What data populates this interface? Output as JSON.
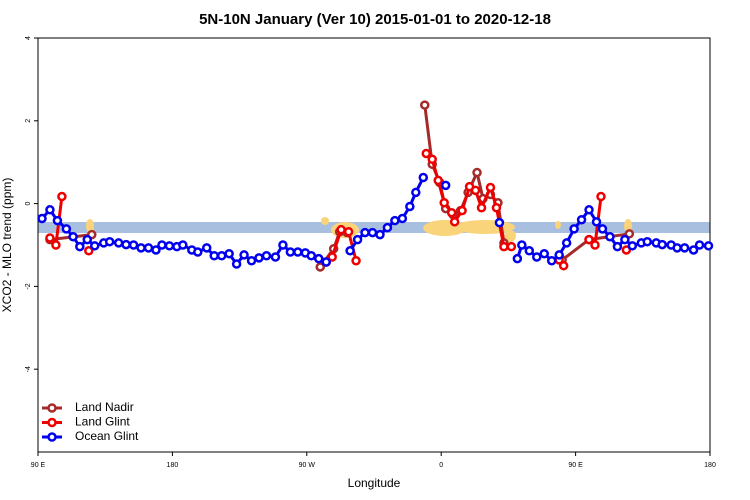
{
  "chart_data": {
    "type": "line",
    "title": "5N-10N January (Ver 10)   2015-01-01 to 2020-12-18",
    "x_label": "Longitude",
    "y_label": "XCO2 - MLO trend (ppm)",
    "xlim": [
      90,
      540
    ],
    "ylim": [
      -6,
      4
    ],
    "xticks": [
      {
        "value": 90,
        "label": "90 E"
      },
      180,
      {
        "value": 270,
        "label": "90 W"
      },
      {
        "value": 360,
        "label": "0"
      },
      {
        "value": 450,
        "label": "90 E"
      },
      {
        "value": 540,
        "label": "180"
      }
    ],
    "yticks": [
      -4,
      -2,
      0,
      2,
      4
    ],
    "legend": "bottom-left",
    "series": [
      {
        "name": "Land Nadir",
        "color": "#a52a2a",
        "x": [
          98,
          126,
          null,
          279,
          288,
          292,
          297,
          null,
          349,
          354,
          359,
          363,
          368,
          373,
          378,
          384,
          388,
          393,
          398,
          402,
          null,
          441,
          459,
          486
        ],
        "values": [
          -0.87,
          -0.75,
          null,
          -1.53,
          -1.09,
          -0.68,
          -0.7,
          null,
          2.38,
          0.95,
          0.51,
          -0.12,
          -0.27,
          -0.17,
          0.27,
          0.75,
          0.12,
          0.22,
          0.02,
          -0.95,
          null,
          -1.36,
          -0.87,
          -0.73
        ]
      },
      {
        "name": "Land Glint",
        "color": "#ee0000",
        "x": [
          98,
          102,
          106,
          null,
          124,
          null,
          283,
          287,
          293,
          298,
          303,
          null,
          350,
          354,
          358,
          362,
          367,
          369,
          374,
          379,
          383,
          387,
          393,
          397,
          402,
          407,
          null,
          439,
          442,
          null,
          459,
          463,
          467,
          null,
          484
        ],
        "values": [
          -0.83,
          -1.0,
          0.17,
          null,
          -1.14,
          null,
          -1.41,
          -1.29,
          -0.63,
          -0.68,
          -1.38,
          null,
          1.21,
          1.07,
          0.56,
          0.02,
          -0.22,
          -0.44,
          -0.17,
          0.41,
          0.32,
          -0.1,
          0.39,
          -0.1,
          -1.04,
          -1.04,
          null,
          -1.36,
          -1.5,
          null,
          -0.87,
          -1.0,
          0.17,
          null,
          -1.12
        ]
      },
      {
        "name": "Ocean Glint",
        "color": "#0000ee",
        "x": [
          92.7,
          98,
          103,
          109,
          113.5,
          118,
          123,
          128,
          134,
          138,
          144,
          149,
          154,
          159,
          164,
          169,
          173,
          178,
          183,
          187,
          193,
          197,
          203,
          208,
          213,
          218,
          223,
          228,
          233,
          238,
          243,
          249,
          254,
          259,
          264,
          269,
          273,
          278,
          283,
          null,
          299,
          304,
          309,
          314,
          319,
          324,
          329,
          334,
          339,
          343,
          348,
          null,
          363,
          null,
          399,
          null,
          411,
          414,
          419,
          424,
          429,
          434,
          439,
          444,
          449,
          454,
          459,
          464,
          468,
          473,
          478,
          483,
          488,
          494,
          498,
          504,
          508,
          514,
          518,
          523,
          529,
          533,
          539
        ],
        "values": [
          -0.36,
          -0.15,
          -0.41,
          -0.61,
          -0.8,
          -1.04,
          -0.87,
          -1.02,
          -0.95,
          -0.92,
          -0.95,
          -0.99,
          -1.0,
          -1.07,
          -1.07,
          -1.12,
          -1.0,
          -1.02,
          -1.04,
          -1.0,
          -1.12,
          -1.17,
          -1.07,
          -1.26,
          -1.26,
          -1.21,
          -1.46,
          -1.24,
          -1.38,
          -1.31,
          -1.26,
          -1.29,
          -1.0,
          -1.17,
          -1.17,
          -1.19,
          -1.26,
          -1.33,
          -1.41,
          null,
          -1.14,
          -0.87,
          -0.7,
          -0.7,
          -0.75,
          -0.58,
          -0.41,
          -0.36,
          -0.07,
          0.27,
          0.63,
          null,
          0.44,
          null,
          -0.46,
          null,
          -1.33,
          -1.0,
          -1.14,
          -1.29,
          -1.21,
          -1.38,
          -1.24,
          -0.95,
          -0.61,
          -0.39,
          -0.15,
          -0.44,
          -0.61,
          -0.8,
          -1.04,
          -0.87,
          -1.02,
          -0.95,
          -0.92,
          -0.95,
          -0.99,
          -1.0,
          -1.07,
          -1.07,
          -1.12,
          -1.0,
          -1.02
        ]
      }
    ]
  }
}
